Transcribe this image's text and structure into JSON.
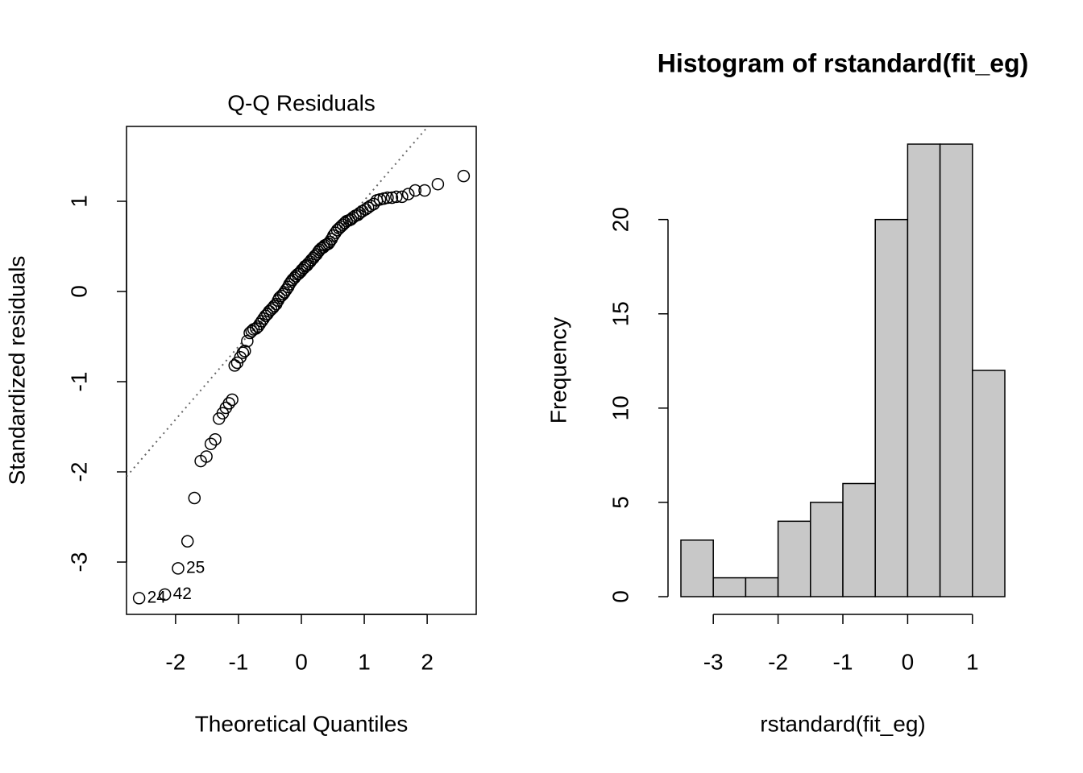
{
  "chart_data": [
    {
      "type": "scatter",
      "title": "Q-Q Residuals",
      "x_label": "Theoretical Quantiles",
      "y_label": "Standardized residuals",
      "x": [
        -2.58,
        -2.17,
        -1.96,
        -1.81,
        -1.7,
        -1.6,
        -1.51,
        -1.44,
        -1.37,
        -1.31,
        -1.25,
        -1.2,
        -1.15,
        -1.1,
        -1.06,
        -1.02,
        -0.97,
        -0.93,
        -0.9,
        -0.86,
        -0.82,
        -0.79,
        -0.76,
        -0.72,
        -0.69,
        -0.66,
        -0.63,
        -0.6,
        -0.57,
        -0.54,
        -0.51,
        -0.48,
        -0.45,
        -0.43,
        -0.4,
        -0.37,
        -0.35,
        -0.32,
        -0.29,
        -0.27,
        -0.24,
        -0.21,
        -0.19,
        -0.16,
        -0.14,
        -0.11,
        -0.09,
        -0.06,
        -0.04,
        -0.01,
        0.01,
        0.04,
        0.06,
        0.09,
        0.11,
        0.14,
        0.16,
        0.19,
        0.21,
        0.24,
        0.27,
        0.29,
        0.32,
        0.35,
        0.37,
        0.4,
        0.43,
        0.45,
        0.48,
        0.51,
        0.54,
        0.57,
        0.6,
        0.63,
        0.66,
        0.69,
        0.72,
        0.76,
        0.79,
        0.82,
        0.86,
        0.9,
        0.93,
        0.97,
        1.02,
        1.06,
        1.1,
        1.15,
        1.2,
        1.25,
        1.31,
        1.37,
        1.44,
        1.51,
        1.6,
        1.7,
        1.81,
        1.96,
        2.17,
        2.58
      ],
      "values": [
        -3.4,
        -3.36,
        -3.07,
        -2.77,
        -2.29,
        -1.88,
        -1.83,
        -1.69,
        -1.64,
        -1.41,
        -1.35,
        -1.29,
        -1.24,
        -1.2,
        -0.82,
        -0.79,
        -0.73,
        -0.68,
        -0.66,
        -0.55,
        -0.46,
        -0.44,
        -0.42,
        -0.41,
        -0.39,
        -0.36,
        -0.33,
        -0.3,
        -0.27,
        -0.25,
        -0.22,
        -0.2,
        -0.18,
        -0.16,
        -0.14,
        -0.1,
        -0.07,
        -0.05,
        -0.03,
        -0.01,
        0.02,
        0.05,
        0.08,
        0.11,
        0.13,
        0.15,
        0.17,
        0.19,
        0.2,
        0.22,
        0.24,
        0.26,
        0.28,
        0.29,
        0.31,
        0.33,
        0.35,
        0.37,
        0.39,
        0.41,
        0.44,
        0.46,
        0.48,
        0.49,
        0.51,
        0.52,
        0.53,
        0.55,
        0.58,
        0.62,
        0.65,
        0.68,
        0.7,
        0.72,
        0.74,
        0.76,
        0.78,
        0.79,
        0.8,
        0.82,
        0.84,
        0.85,
        0.87,
        0.89,
        0.91,
        0.93,
        0.95,
        0.97,
        1.01,
        1.02,
        1.03,
        1.04,
        1.04,
        1.05,
        1.05,
        1.08,
        1.12,
        1.12,
        1.19,
        1.28
      ],
      "labels": [
        "24",
        "42",
        "25",
        null,
        null,
        null,
        null,
        null,
        null,
        null,
        null,
        null,
        null,
        null,
        null,
        null,
        null,
        null,
        null,
        null,
        null,
        null,
        null,
        null,
        null,
        null,
        null,
        null,
        null,
        null,
        null,
        null,
        null,
        null,
        null,
        null,
        null,
        null,
        null,
        null,
        null,
        null,
        null,
        null,
        null,
        null,
        null,
        null,
        null,
        null,
        null,
        null,
        null,
        null,
        null,
        null,
        null,
        null,
        null,
        null,
        null,
        null,
        null,
        null,
        null,
        null,
        null,
        null,
        null,
        null,
        null,
        null,
        null,
        null,
        null,
        null,
        null,
        null,
        null,
        null,
        null,
        null,
        null,
        null,
        null,
        null,
        null,
        null,
        null,
        null,
        null,
        null,
        null,
        null,
        null,
        null,
        null,
        null,
        null,
        null
      ],
      "reference_line": {
        "intercept": 0.2,
        "slope": 0.81
      },
      "xlim": [
        -2.78,
        2.78
      ],
      "ylim": [
        -3.58,
        1.83
      ],
      "xticks": [
        -2,
        -1,
        0,
        1,
        2
      ],
      "yticks": [
        -3,
        -2,
        -1,
        0,
        1
      ],
      "color": "#000000"
    },
    {
      "type": "histogram",
      "title": "Histogram of rstandard(fit_eg)",
      "x_label": "rstandard(fit_eg)",
      "y_label": "Frequency",
      "bins": [
        -3.5,
        -3,
        -2.5,
        -2,
        -1.5,
        -1,
        -0.5,
        0,
        0.5,
        1,
        1.5
      ],
      "values": [
        3,
        1,
        1,
        4,
        5,
        6,
        20,
        24,
        24,
        12
      ],
      "xlim": [
        -3.5,
        1.5
      ],
      "ylim": [
        0,
        24
      ],
      "xticks": [
        -3,
        -2,
        -1,
        0,
        1
      ],
      "yticks": [
        0,
        5,
        10,
        15,
        20
      ],
      "color": "#c8c8c8"
    }
  ]
}
